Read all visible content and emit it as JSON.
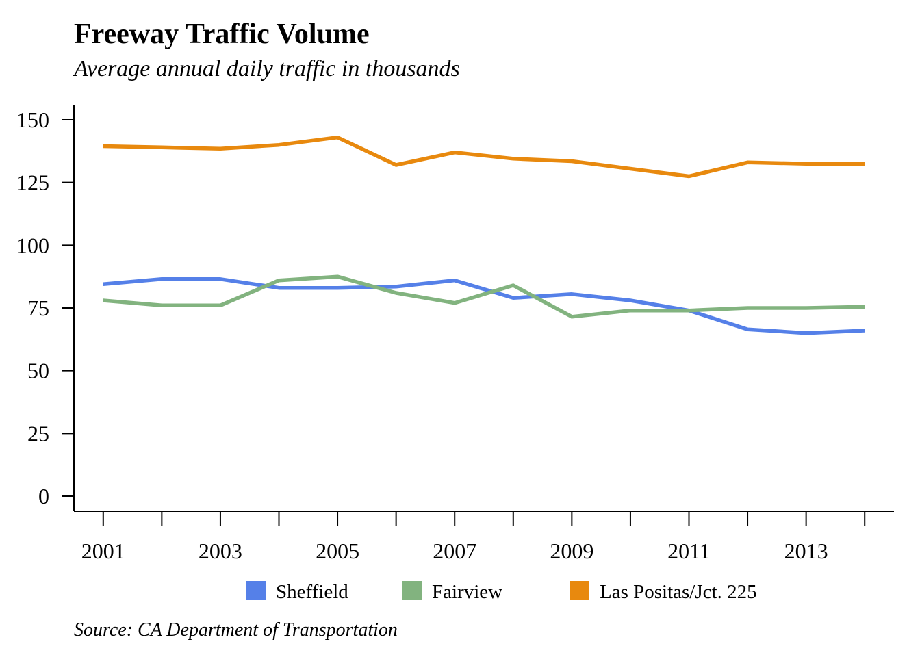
{
  "chart_data": {
    "type": "line",
    "title": "Freeway Traffic Volume",
    "subtitle": "Average annual daily traffic in thousands",
    "source": "Source: CA Department of Transportation",
    "x": [
      2001,
      2002,
      2003,
      2004,
      2005,
      2006,
      2007,
      2008,
      2009,
      2010,
      2011,
      2012,
      2013,
      2014
    ],
    "x_tick_labels": [
      "2001",
      "2003",
      "2005",
      "2007",
      "2009",
      "2011",
      "2013"
    ],
    "y_ticks": [
      0,
      25,
      50,
      75,
      100,
      125,
      150
    ],
    "y_tick_labels": [
      "0",
      "25",
      "50",
      "75",
      "100",
      "125",
      "150"
    ],
    "xlim": [
      2000.5,
      2014.5
    ],
    "ylim": [
      -6,
      156
    ],
    "grid": false,
    "legend_position": "bottom",
    "series": [
      {
        "name": "Sheffield",
        "color": "#5580e8",
        "values": [
          84.5,
          86.5,
          86.5,
          83,
          83,
          83.5,
          86,
          79,
          80.5,
          78,
          74,
          66.5,
          65,
          66
        ]
      },
      {
        "name": "Fairview",
        "color": "#82b37f",
        "values": [
          78,
          76,
          76,
          86,
          87.5,
          81,
          77,
          84,
          71.5,
          74,
          74,
          75,
          75,
          75.5
        ]
      },
      {
        "name": "Las Positas/Jct. 225",
        "color": "#e8890e",
        "values": [
          139.5,
          139,
          138.5,
          140,
          143,
          132,
          137,
          134.5,
          133.5,
          130.5,
          127.5,
          133,
          132.5,
          132.5
        ]
      }
    ]
  }
}
